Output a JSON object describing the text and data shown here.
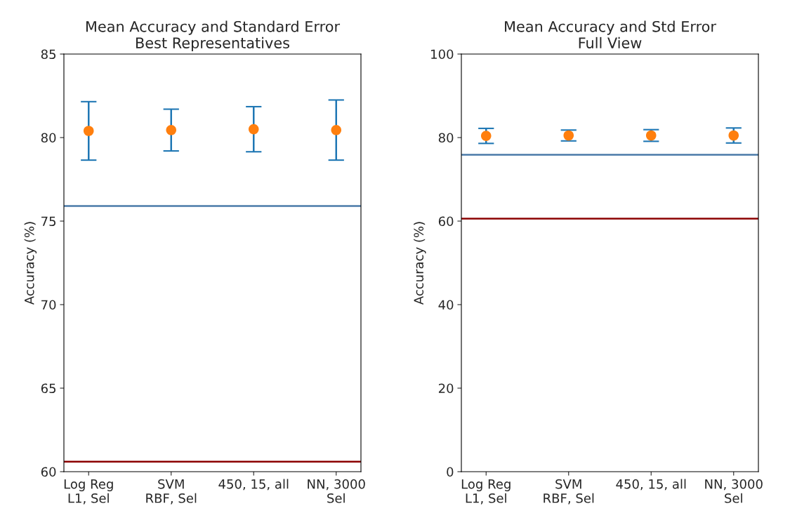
{
  "chart_data": [
    {
      "type": "scatter",
      "title": "Mean Accuracy and Standard Error\nBest Representatives",
      "ylabel": "Accuracy (%)",
      "categories": [
        "Log Reg\nL1, Sel",
        "SVM\nRBF, Sel",
        "450, 15, all",
        "NN, 3000\nSel"
      ],
      "ylim": [
        60,
        85
      ],
      "yticks": [
        60,
        65,
        70,
        75,
        80,
        85
      ],
      "grid": false,
      "series": [
        {
          "color": "#ff7f0e",
          "values": [
            80.4,
            80.45,
            80.5,
            80.45
          ],
          "errors": [
            1.75,
            1.25,
            1.35,
            1.8
          ],
          "marker": "circle"
        }
      ],
      "ref_lines": [
        {
          "axis": "y",
          "value": 75.9,
          "color": "#4a7aa8"
        },
        {
          "axis": "y",
          "value": 60.6,
          "color": "#8b0000"
        }
      ]
    },
    {
      "type": "scatter",
      "title": "Mean Accuracy and Std Error\nFull View",
      "ylabel": "Accuracy (%)",
      "categories": [
        "Log Reg\nL1, Sel",
        "SVM\nRBF, Sel",
        "450, 15, all",
        "NN, 3000\nSel"
      ],
      "ylim": [
        0,
        100
      ],
      "yticks": [
        0,
        20,
        40,
        60,
        80,
        100
      ],
      "grid": false,
      "series": [
        {
          "color": "#ff7f0e",
          "values": [
            80.4,
            80.5,
            80.5,
            80.5
          ],
          "errors": [
            1.8,
            1.3,
            1.4,
            1.8
          ],
          "marker": "circle"
        }
      ],
      "ref_lines": [
        {
          "axis": "y",
          "value": 75.9,
          "color": "#4a7aa8"
        },
        {
          "axis": "y",
          "value": 60.6,
          "color": "#8b0000"
        }
      ]
    }
  ]
}
